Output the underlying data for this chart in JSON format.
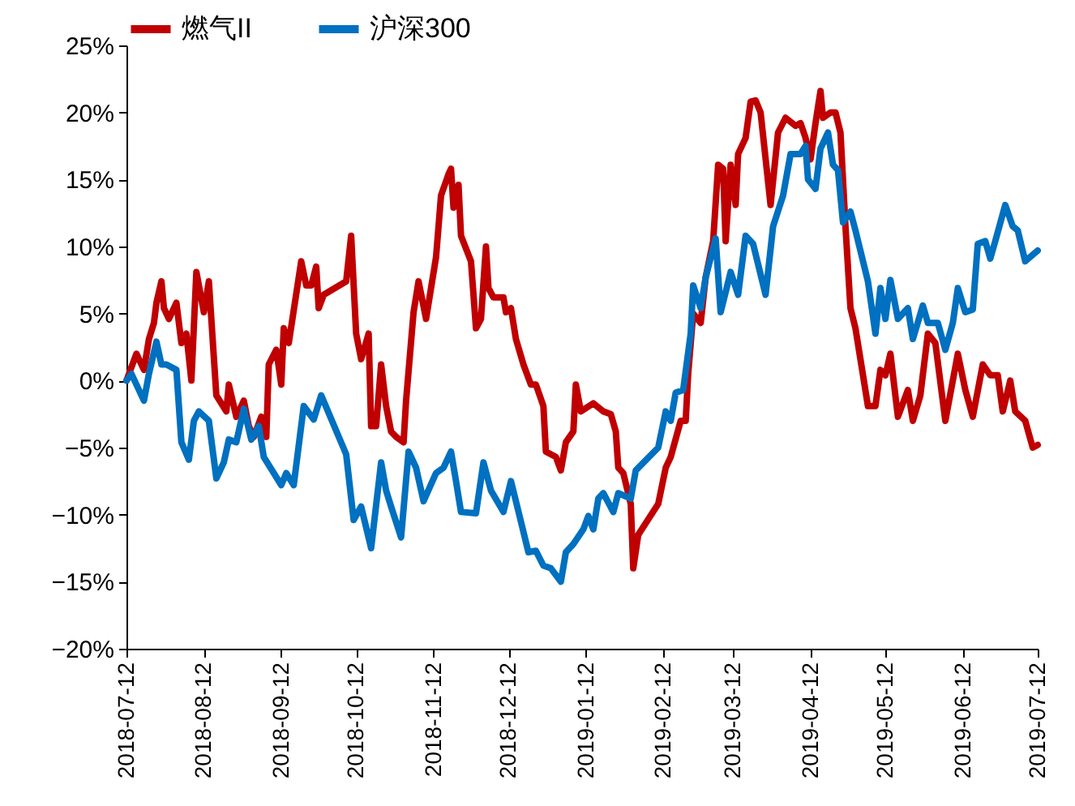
{
  "chart_data": {
    "type": "line",
    "legend": "top",
    "xlim": [
      "2018-07-12",
      "2019-07-12"
    ],
    "xticks": [
      "2018-07-12",
      "2018-08-12",
      "2018-09-12",
      "2018-10-12",
      "2018-11-12",
      "2018-12-12",
      "2019-01-12",
      "2019-02-12",
      "2019-03-12",
      "2019-04-12",
      "2019-05-12",
      "2019-06-12",
      "2019-07-12"
    ],
    "ylim": [
      -20,
      25
    ],
    "yticks": [
      {
        "value": -20,
        "label": "−20%"
      },
      {
        "value": -15,
        "label": "−15%"
      },
      {
        "value": -10,
        "label": "−10%"
      },
      {
        "value": -5,
        "label": "−5%"
      },
      {
        "value": 0,
        "label": "0%"
      },
      {
        "value": 5,
        "label": "5%"
      },
      {
        "value": 10,
        "label": "10%"
      },
      {
        "value": 15,
        "label": "15%"
      },
      {
        "value": 20,
        "label": "20%"
      },
      {
        "value": 25,
        "label": "25%"
      }
    ],
    "series": [
      {
        "name": "燃气II",
        "color": "#c00000",
        "x": [
          "2018-07-12",
          "2018-07-16",
          "2018-07-19",
          "2018-07-21",
          "2018-07-23",
          "2018-07-24",
          "2018-07-26",
          "2018-07-27",
          "2018-07-29",
          "2018-08-01",
          "2018-08-03",
          "2018-08-05",
          "2018-08-07",
          "2018-08-09",
          "2018-08-12",
          "2018-08-14",
          "2018-08-17",
          "2018-08-21",
          "2018-08-22",
          "2018-08-25",
          "2018-08-28",
          "2018-08-30",
          "2018-09-01",
          "2018-09-04",
          "2018-09-06",
          "2018-09-07",
          "2018-09-10",
          "2018-09-12",
          "2018-09-13",
          "2018-09-15",
          "2018-09-20",
          "2018-09-22",
          "2018-09-24",
          "2018-09-26",
          "2018-09-27",
          "2018-09-29",
          "2018-10-08",
          "2018-10-10",
          "2018-10-12",
          "2018-10-14",
          "2018-10-17",
          "2018-10-18",
          "2018-10-20",
          "2018-10-22",
          "2018-10-24",
          "2018-10-26",
          "2018-10-28",
          "2018-10-31",
          "2018-11-01",
          "2018-11-04",
          "2018-11-06",
          "2018-11-09",
          "2018-11-13",
          "2018-11-15",
          "2018-11-18",
          "2018-11-19",
          "2018-11-20",
          "2018-11-22",
          "2018-11-23",
          "2018-11-27",
          "2018-11-29",
          "2018-12-01",
          "2018-12-03",
          "2018-12-04",
          "2018-12-06",
          "2018-12-10",
          "2018-12-11",
          "2018-12-13",
          "2018-12-15",
          "2018-12-18",
          "2018-12-21",
          "2018-12-23",
          "2018-12-26",
          "2018-12-27",
          "2018-12-31",
          "2019-01-02",
          "2019-01-04",
          "2019-01-07",
          "2019-01-08",
          "2019-01-10",
          "2019-01-15",
          "2019-01-19",
          "2019-01-22",
          "2019-01-24",
          "2019-01-25",
          "2019-01-27",
          "2019-01-30",
          "2019-01-31",
          "2019-02-02",
          "2019-02-10",
          "2019-02-13",
          "2019-02-15",
          "2019-02-19",
          "2019-02-21",
          "2019-02-22",
          "2019-02-24",
          "2019-02-27",
          "2019-03-01",
          "2019-03-04",
          "2019-03-06",
          "2019-03-08",
          "2019-03-09",
          "2019-03-11",
          "2019-03-13",
          "2019-03-14",
          "2019-03-17",
          "2019-03-19",
          "2019-03-21",
          "2019-03-23",
          "2019-03-27",
          "2019-03-30",
          "2019-04-02",
          "2019-04-06",
          "2019-04-08",
          "2019-04-10",
          "2019-04-12",
          "2019-04-14",
          "2019-04-16",
          "2019-04-17",
          "2019-04-20",
          "2019-04-22",
          "2019-04-24",
          "2019-04-26",
          "2019-04-28",
          "2019-04-30",
          "2019-05-05",
          "2019-05-08",
          "2019-05-10",
          "2019-05-12",
          "2019-05-14",
          "2019-05-17",
          "2019-05-21",
          "2019-05-23",
          "2019-05-26",
          "2019-05-29",
          "2019-06-01",
          "2019-06-05",
          "2019-06-10",
          "2019-06-13",
          "2019-06-16",
          "2019-06-20",
          "2019-06-23",
          "2019-06-26",
          "2019-06-28",
          "2019-07-01",
          "2019-07-03",
          "2019-07-07",
          "2019-07-10",
          "2019-07-12"
        ],
        "values": [
          0,
          2.0,
          0.8,
          3.1,
          4.3,
          5.8,
          7.4,
          5.4,
          4.6,
          5.8,
          2.8,
          3.5,
          0,
          8.1,
          5.1,
          7.4,
          -1.1,
          -2.3,
          -0.3,
          -2.7,
          -1.5,
          -3.4,
          -4.2,
          -2.7,
          -4.2,
          1.2,
          2.3,
          -0.3,
          3.9,
          2.8,
          8.9,
          7.1,
          7.1,
          8.5,
          5.4,
          6.4,
          7.4,
          10.8,
          3.5,
          1.6,
          3.5,
          -3.4,
          -3.4,
          1.2,
          -1.9,
          -3.8,
          -4.2,
          -4.6,
          -1.5,
          5.1,
          7.4,
          4.6,
          9.2,
          13.8,
          15.4,
          15.8,
          12.9,
          14.6,
          10.8,
          8.9,
          3.9,
          4.6,
          10.0,
          6.9,
          6.2,
          6.2,
          5.1,
          5.4,
          3.1,
          1.2,
          -0.3,
          -0.3,
          -1.9,
          -5.3,
          -5.7,
          -6.7,
          -4.6,
          -3.8,
          -0.3,
          -2.3,
          -1.7,
          -2.3,
          -2.5,
          -3.8,
          -6.5,
          -6.9,
          -9.2,
          -14.0,
          -11.5,
          -9.2,
          -6.5,
          -5.7,
          -3.0,
          -3.0,
          0.5,
          5.0,
          4.3,
          7.7,
          10.4,
          16.1,
          15.8,
          10.4,
          16.1,
          13.1,
          16.9,
          18.1,
          20.8,
          20.9,
          20.0,
          13.1,
          18.5,
          19.6,
          19.0,
          19.2,
          18.1,
          16.5,
          19.2,
          21.6,
          19.6,
          20.0,
          20.0,
          18.5,
          11.5,
          5.4,
          3.9,
          -1.9,
          -1.9,
          0.8,
          0.4,
          2.0,
          -2.7,
          -0.7,
          -3.0,
          -1.1,
          3.5,
          2.8,
          -3.0,
          2.0,
          -0.7,
          -2.7,
          1.2,
          0.4,
          0.4,
          -2.3,
          0.0,
          -2.3,
          -3.0,
          -5.0,
          -4.8
        ]
      },
      {
        "name": "沪深300",
        "color": "#0070c0",
        "x": [
          "2018-07-12",
          "2018-07-14",
          "2018-07-19",
          "2018-07-21",
          "2018-07-24",
          "2018-07-26",
          "2018-07-28",
          "2018-08-01",
          "2018-08-03",
          "2018-08-06",
          "2018-08-08",
          "2018-08-10",
          "2018-08-14",
          "2018-08-17",
          "2018-08-20",
          "2018-08-22",
          "2018-08-25",
          "2018-08-28",
          "2018-08-31",
          "2018-09-03",
          "2018-09-05",
          "2018-09-09",
          "2018-09-12",
          "2018-09-14",
          "2018-09-17",
          "2018-09-21",
          "2018-09-25",
          "2018-09-28",
          "2018-10-08",
          "2018-10-11",
          "2018-10-14",
          "2018-10-18",
          "2018-10-22",
          "2018-10-24",
          "2018-10-26",
          "2018-10-30",
          "2018-11-02",
          "2018-11-05",
          "2018-11-08",
          "2018-11-13",
          "2018-11-16",
          "2018-11-19",
          "2018-11-21",
          "2018-11-23",
          "2018-11-29",
          "2018-12-02",
          "2018-12-05",
          "2018-12-10",
          "2018-12-13",
          "2018-12-15",
          "2018-12-20",
          "2018-12-23",
          "2018-12-26",
          "2018-12-29",
          "2019-01-02",
          "2019-01-04",
          "2019-01-07",
          "2019-01-11",
          "2019-01-13",
          "2019-01-15",
          "2019-01-17",
          "2019-01-19",
          "2019-01-23",
          "2019-01-25",
          "2019-01-30",
          "2019-02-01",
          "2019-02-10",
          "2019-02-13",
          "2019-02-15",
          "2019-02-17",
          "2019-02-20",
          "2019-02-23",
          "2019-02-24",
          "2019-02-27",
          "2019-03-01",
          "2019-03-05",
          "2019-03-07",
          "2019-03-11",
          "2019-03-14",
          "2019-03-17",
          "2019-03-20",
          "2019-03-25",
          "2019-03-28",
          "2019-04-01",
          "2019-04-04",
          "2019-04-08",
          "2019-04-10",
          "2019-04-11",
          "2019-04-14",
          "2019-04-16",
          "2019-04-19",
          "2019-04-21",
          "2019-04-23",
          "2019-04-25",
          "2019-04-28",
          "2019-04-30",
          "2019-05-05",
          "2019-05-08",
          "2019-05-10",
          "2019-05-12",
          "2019-05-14",
          "2019-05-17",
          "2019-05-21",
          "2019-05-23",
          "2019-05-27",
          "2019-05-29",
          "2019-06-02",
          "2019-06-05",
          "2019-06-08",
          "2019-06-10",
          "2019-06-13",
          "2019-06-16",
          "2019-06-18",
          "2019-06-21",
          "2019-06-23",
          "2019-06-25",
          "2019-06-29",
          "2019-07-02",
          "2019-07-04",
          "2019-07-07",
          "2019-07-12"
        ],
        "values": [
          0.0,
          0.5,
          -1.5,
          0.5,
          2.9,
          1.2,
          1.2,
          0.8,
          -4.6,
          -5.9,
          -3.0,
          -2.3,
          -3.0,
          -7.3,
          -6.1,
          -4.4,
          -4.6,
          -2.1,
          -4.4,
          -3.4,
          -5.7,
          -6.9,
          -7.8,
          -6.9,
          -7.8,
          -1.9,
          -2.9,
          -1.1,
          -5.5,
          -10.4,
          -9.4,
          -12.5,
          -6.1,
          -8.2,
          -9.4,
          -11.7,
          -5.3,
          -6.5,
          -9.0,
          -6.9,
          -6.5,
          -5.3,
          -7.5,
          -9.8,
          -9.9,
          -6.1,
          -8.2,
          -9.8,
          -7.5,
          -9.0,
          -12.8,
          -12.7,
          -13.8,
          -14.0,
          -15.0,
          -12.8,
          -12.2,
          -11.1,
          -10.1,
          -11.1,
          -8.8,
          -8.4,
          -9.8,
          -8.4,
          -8.8,
          -6.7,
          -5.0,
          -2.3,
          -3.0,
          -0.9,
          -0.7,
          3.5,
          7.1,
          5.4,
          7.7,
          10.6,
          5.1,
          8.1,
          6.4,
          10.8,
          10.2,
          6.4,
          11.5,
          13.8,
          16.9,
          16.9,
          17.5,
          15.0,
          14.3,
          17.3,
          18.5,
          16.1,
          15.7,
          11.8,
          12.6,
          11.2,
          7.4,
          3.5,
          6.9,
          4.6,
          7.5,
          4.6,
          5.4,
          3.1,
          5.6,
          4.3,
          4.3,
          2.3,
          4.3,
          6.9,
          5.1,
          5.3,
          10.2,
          10.4,
          9.1,
          10.4,
          13.1,
          11.5,
          11.2,
          8.9,
          9.7
        ]
      }
    ]
  }
}
